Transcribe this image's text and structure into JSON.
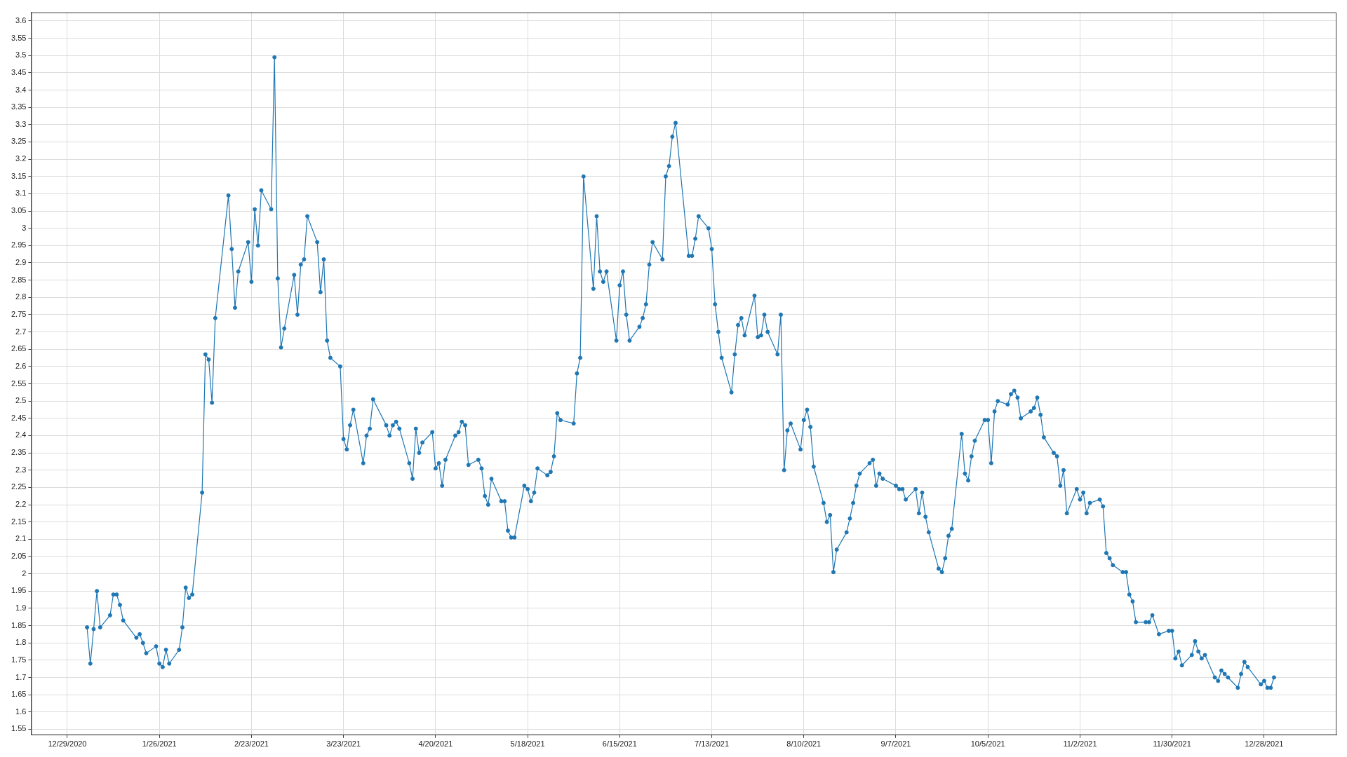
{
  "chart_data": {
    "type": "line",
    "color": "#1f77b4",
    "marker": "circle",
    "line_style": "solid",
    "grid": true,
    "x": [
      "2021-01-04",
      "2021-01-05",
      "2021-01-06",
      "2021-01-07",
      "2021-01-08",
      "2021-01-11",
      "2021-01-12",
      "2021-01-13",
      "2021-01-14",
      "2021-01-15",
      "2021-01-19",
      "2021-01-20",
      "2021-01-21",
      "2021-01-22",
      "2021-01-25",
      "2021-01-26",
      "2021-01-27",
      "2021-01-28",
      "2021-01-29",
      "2021-02-01",
      "2021-02-02",
      "2021-02-03",
      "2021-02-04",
      "2021-02-05",
      "2021-02-08",
      "2021-02-09",
      "2021-02-10",
      "2021-02-11",
      "2021-02-12",
      "2021-02-16",
      "2021-02-17",
      "2021-02-18",
      "2021-02-19",
      "2021-02-22",
      "2021-02-23",
      "2021-02-24",
      "2021-02-25",
      "2021-02-26",
      "2021-03-01",
      "2021-03-02",
      "2021-03-03",
      "2021-03-04",
      "2021-03-05",
      "2021-03-08",
      "2021-03-09",
      "2021-03-10",
      "2021-03-11",
      "2021-03-12",
      "2021-03-15",
      "2021-03-16",
      "2021-03-17",
      "2021-03-18",
      "2021-03-19",
      "2021-03-22",
      "2021-03-23",
      "2021-03-24",
      "2021-03-25",
      "2021-03-26",
      "2021-03-29",
      "2021-03-30",
      "2021-03-31",
      "2021-04-01",
      "2021-04-05",
      "2021-04-06",
      "2021-04-07",
      "2021-04-08",
      "2021-04-09",
      "2021-04-12",
      "2021-04-13",
      "2021-04-14",
      "2021-04-15",
      "2021-04-16",
      "2021-04-19",
      "2021-04-20",
      "2021-04-21",
      "2021-04-22",
      "2021-04-23",
      "2021-04-26",
      "2021-04-27",
      "2021-04-28",
      "2021-04-29",
      "2021-04-30",
      "2021-05-03",
      "2021-05-04",
      "2021-05-05",
      "2021-05-06",
      "2021-05-07",
      "2021-05-10",
      "2021-05-11",
      "2021-05-12",
      "2021-05-13",
      "2021-05-14",
      "2021-05-17",
      "2021-05-18",
      "2021-05-19",
      "2021-05-20",
      "2021-05-21",
      "2021-05-24",
      "2021-05-25",
      "2021-05-26",
      "2021-05-27",
      "2021-05-28",
      "2021-06-01",
      "2021-06-02",
      "2021-06-03",
      "2021-06-04",
      "2021-06-07",
      "2021-06-08",
      "2021-06-09",
      "2021-06-10",
      "2021-06-11",
      "2021-06-14",
      "2021-06-15",
      "2021-06-16",
      "2021-06-17",
      "2021-06-18",
      "2021-06-21",
      "2021-06-22",
      "2021-06-23",
      "2021-06-24",
      "2021-06-25",
      "2021-06-28",
      "2021-06-29",
      "2021-06-30",
      "2021-07-01",
      "2021-07-02",
      "2021-07-06",
      "2021-07-07",
      "2021-07-08",
      "2021-07-09",
      "2021-07-12",
      "2021-07-13",
      "2021-07-14",
      "2021-07-15",
      "2021-07-16",
      "2021-07-19",
      "2021-07-20",
      "2021-07-21",
      "2021-07-22",
      "2021-07-23",
      "2021-07-26",
      "2021-07-27",
      "2021-07-28",
      "2021-07-29",
      "2021-07-30",
      "2021-08-02",
      "2021-08-03",
      "2021-08-04",
      "2021-08-05",
      "2021-08-06",
      "2021-08-09",
      "2021-08-10",
      "2021-08-11",
      "2021-08-12",
      "2021-08-13",
      "2021-08-16",
      "2021-08-17",
      "2021-08-18",
      "2021-08-19",
      "2021-08-20",
      "2021-08-23",
      "2021-08-24",
      "2021-08-25",
      "2021-08-26",
      "2021-08-27",
      "2021-08-30",
      "2021-08-31",
      "2021-09-01",
      "2021-09-02",
      "2021-09-03",
      "2021-09-07",
      "2021-09-08",
      "2021-09-09",
      "2021-09-10",
      "2021-09-13",
      "2021-09-14",
      "2021-09-15",
      "2021-09-16",
      "2021-09-17",
      "2021-09-20",
      "2021-09-21",
      "2021-09-22",
      "2021-09-23",
      "2021-09-24",
      "2021-09-27",
      "2021-09-28",
      "2021-09-29",
      "2021-09-30",
      "2021-10-01",
      "2021-10-04",
      "2021-10-05",
      "2021-10-06",
      "2021-10-07",
      "2021-10-08",
      "2021-10-11",
      "2021-10-12",
      "2021-10-13",
      "2021-10-14",
      "2021-10-15",
      "2021-10-18",
      "2021-10-19",
      "2021-10-20",
      "2021-10-21",
      "2021-10-22",
      "2021-10-25",
      "2021-10-26",
      "2021-10-27",
      "2021-10-28",
      "2021-10-29",
      "2021-11-01",
      "2021-11-02",
      "2021-11-03",
      "2021-11-04",
      "2021-11-05",
      "2021-11-08",
      "2021-11-09",
      "2021-11-10",
      "2021-11-11",
      "2021-11-12",
      "2021-11-15",
      "2021-11-16",
      "2021-11-17",
      "2021-11-18",
      "2021-11-19",
      "2021-11-22",
      "2021-11-23",
      "2021-11-24",
      "2021-11-26",
      "2021-11-29",
      "2021-11-30",
      "2021-12-01",
      "2021-12-02",
      "2021-12-03",
      "2021-12-06",
      "2021-12-07",
      "2021-12-08",
      "2021-12-09",
      "2021-12-10",
      "2021-12-13",
      "2021-12-14",
      "2021-12-15",
      "2021-12-16",
      "2021-12-17",
      "2021-12-20",
      "2021-12-21",
      "2021-12-22",
      "2021-12-23",
      "2021-12-27",
      "2021-12-28",
      "2021-12-29",
      "2021-12-30",
      "2021-12-31"
    ],
    "values": [
      1.845,
      1.74,
      1.84,
      1.95,
      1.845,
      1.88,
      1.94,
      1.94,
      1.91,
      1.865,
      1.815,
      1.825,
      1.8,
      1.77,
      1.79,
      1.74,
      1.73,
      1.78,
      1.74,
      1.78,
      1.845,
      1.96,
      1.93,
      1.94,
      2.235,
      2.635,
      2.62,
      2.495,
      2.74,
      3.095,
      2.94,
      2.77,
      2.875,
      2.96,
      2.845,
      3.055,
      2.95,
      3.11,
      3.055,
      3.495,
      2.855,
      2.655,
      2.71,
      2.865,
      2.75,
      2.895,
      2.91,
      3.035,
      2.96,
      2.815,
      2.91,
      2.675,
      2.625,
      2.6,
      2.39,
      2.36,
      2.43,
      2.475,
      2.32,
      2.4,
      2.42,
      2.505,
      2.43,
      2.4,
      2.43,
      2.44,
      2.42,
      2.32,
      2.275,
      2.42,
      2.35,
      2.38,
      2.41,
      2.305,
      2.32,
      2.255,
      2.33,
      2.4,
      2.41,
      2.44,
      2.43,
      2.315,
      2.33,
      2.305,
      2.225,
      2.2,
      2.275,
      2.21,
      2.21,
      2.125,
      2.105,
      2.105,
      2.255,
      2.245,
      2.21,
      2.235,
      2.305,
      2.285,
      2.295,
      2.34,
      2.465,
      2.445,
      2.435,
      2.58,
      2.625,
      3.15,
      2.825,
      3.035,
      2.875,
      2.845,
      2.875,
      2.675,
      2.835,
      2.875,
      2.75,
      2.675,
      2.715,
      2.74,
      2.78,
      2.895,
      2.96,
      2.91,
      3.15,
      3.18,
      3.265,
      3.305,
      2.92,
      2.92,
      2.97,
      3.035,
      3.0,
      2.94,
      2.78,
      2.7,
      2.625,
      2.525,
      2.635,
      2.72,
      2.74,
      2.69,
      2.805,
      2.685,
      2.69,
      2.75,
      2.7,
      2.635,
      2.75,
      2.3,
      2.415,
      2.435,
      2.36,
      2.445,
      2.475,
      2.425,
      2.31,
      2.205,
      2.15,
      2.17,
      2.005,
      2.07,
      2.12,
      2.16,
      2.205,
      2.255,
      2.29,
      2.32,
      2.33,
      2.255,
      2.29,
      2.275,
      2.255,
      2.245,
      2.245,
      2.215,
      2.245,
      2.175,
      2.235,
      2.165,
      2.12,
      2.015,
      2.005,
      2.045,
      2.11,
      2.13,
      2.405,
      2.29,
      2.27,
      2.34,
      2.385,
      2.445,
      2.445,
      2.32,
      2.47,
      2.5,
      2.49,
      2.52,
      2.53,
      2.51,
      2.45,
      2.47,
      2.48,
      2.51,
      2.46,
      2.395,
      2.35,
      2.34,
      2.255,
      2.3,
      2.175,
      2.245,
      2.215,
      2.235,
      2.175,
      2.205,
      2.215,
      2.195,
      2.06,
      2.045,
      2.025,
      2.005,
      2.005,
      1.94,
      1.92,
      1.86,
      1.86,
      1.86,
      1.88,
      1.825,
      1.835,
      1.835,
      1.755,
      1.775,
      1.735,
      1.765,
      1.805,
      1.775,
      1.755,
      1.765,
      1.7,
      1.69,
      1.72,
      1.71,
      1.7,
      1.67,
      1.71,
      1.745,
      1.73,
      1.68,
      1.69,
      1.67,
      1.67,
      1.7
    ],
    "xlim": [
      "2020-12-18",
      "2022-01-19"
    ],
    "xticks": [
      {
        "value": "2020-12-29",
        "label": "12/29/2020"
      },
      {
        "value": "2021-01-26",
        "label": "1/26/2021"
      },
      {
        "value": "2021-02-23",
        "label": "2/23/2021"
      },
      {
        "value": "2021-03-23",
        "label": "3/23/2021"
      },
      {
        "value": "2021-04-20",
        "label": "4/20/2021"
      },
      {
        "value": "2021-05-18",
        "label": "5/18/2021"
      },
      {
        "value": "2021-06-15",
        "label": "6/15/2021"
      },
      {
        "value": "2021-07-13",
        "label": "7/13/2021"
      },
      {
        "value": "2021-08-10",
        "label": "8/10/2021"
      },
      {
        "value": "2021-09-07",
        "label": "9/7/2021"
      },
      {
        "value": "2021-10-05",
        "label": "10/5/2021"
      },
      {
        "value": "2021-11-02",
        "label": "11/2/2021"
      },
      {
        "value": "2021-11-30",
        "label": "11/30/2021"
      },
      {
        "value": "2021-12-28",
        "label": "12/28/2021"
      }
    ],
    "ylim": [
      1.533,
      3.625
    ],
    "yticks": [
      1.55,
      1.6,
      1.65,
      1.7,
      1.75,
      1.8,
      1.85,
      1.9,
      1.95,
      2,
      2.05,
      2.1,
      2.15,
      2.2,
      2.25,
      2.3,
      2.35,
      2.4,
      2.45,
      2.5,
      2.55,
      2.6,
      2.65,
      2.7,
      2.75,
      2.8,
      2.85,
      2.9,
      2.95,
      3,
      3.05,
      3.1,
      3.15,
      3.2,
      3.25,
      3.3,
      3.35,
      3.4,
      3.45,
      3.5,
      3.55,
      3.6
    ]
  }
}
